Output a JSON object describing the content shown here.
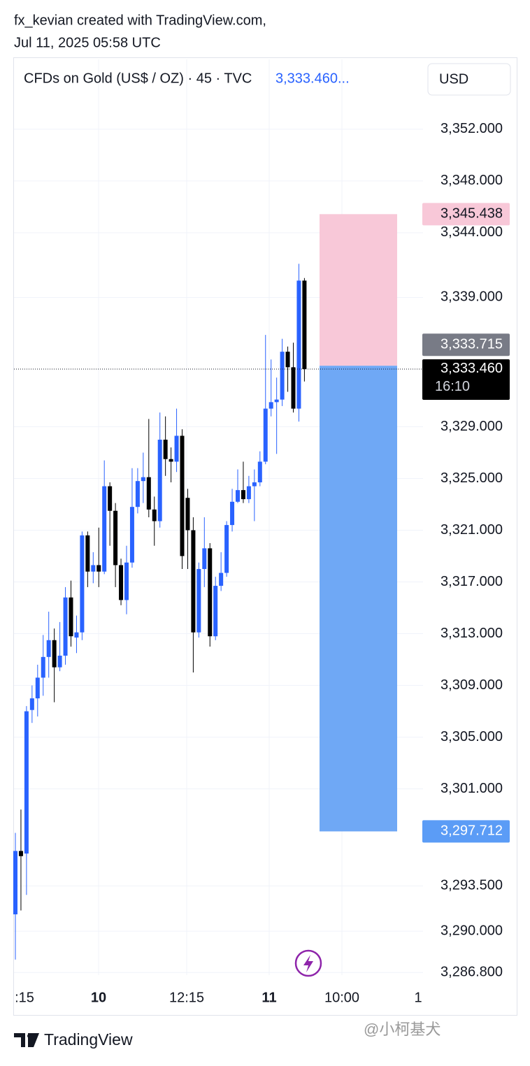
{
  "chart_data": {
    "type": "candlestick",
    "attribution": "fx_kevian created with TradingView.com,",
    "timestamp": "Jul 11, 2025 05:58 UTC",
    "title": "CFDs on Gold (US$ / OZ) · 45 · TVC",
    "header_price": "3,333.460...",
    "currency": "USD",
    "x_labels": [
      ":15",
      "10",
      "12:15",
      "11",
      "10:00",
      "1"
    ],
    "up_color": "#2962ff",
    "down_color": "#000000",
    "open": [
      3291.3,
      3296.2,
      3296.0,
      3307.1,
      3308.0,
      3309.6,
      3311.2,
      3312.5,
      3310.4,
      3311.3,
      3315.8,
      3312.7,
      3313.1,
      3320.6,
      3317.8,
      3318.3,
      3317.8,
      3324.4,
      3322.5,
      3318.3,
      3315.6,
      3318.5,
      3322.8,
      3324.8,
      3325.1,
      3322.6,
      3321.7,
      3328.0,
      3326.5,
      3326.3,
      3328.3,
      3323.5,
      3321.0,
      3313.1,
      3318.0,
      3319.6,
      3312.8,
      3316.7,
      3317.7,
      3321.4,
      3323.2,
      3324.1,
      3323.4,
      3324.4,
      3324.7,
      3326.3,
      3330.4,
      3330.9,
      3331.1,
      3334.8,
      3333.6,
      3330.4,
      3340.3
    ],
    "high": [
      3297.6,
      3299.4,
      3307.4,
      3309.0,
      3310.6,
      3312.9,
      3314.7,
      3313.4,
      3313.9,
      3316.6,
      3317.1,
      3314.4,
      3320.9,
      3320.9,
      3319.3,
      3321.2,
      3326.4,
      3324.7,
      3323.1,
      3318.8,
      3319.8,
      3325.8,
      3325.8,
      3327.0,
      3329.6,
      3323.6,
      3330.1,
      3329.8,
      3327.4,
      3330.4,
      3328.8,
      3324.2,
      3322.0,
      3318.5,
      3322.0,
      3320.0,
      3317.4,
      3319.3,
      3321.7,
      3324.2,
      3325.7,
      3326.3,
      3325.2,
      3325.7,
      3327.1,
      3336.1,
      3334.2,
      3332.8,
      3335.8,
      3335.2,
      3335.5,
      3341.6,
      3340.5
    ],
    "low": [
      3287.8,
      3291.6,
      3292.8,
      3306.1,
      3306.6,
      3308.2,
      3309.6,
      3307.7,
      3310.1,
      3310.6,
      3312.0,
      3311.5,
      3312.5,
      3316.6,
      3316.9,
      3316.6,
      3317.6,
      3319.8,
      3316.6,
      3315.2,
      3314.5,
      3318.1,
      3322.3,
      3323.1,
      3322.0,
      3319.8,
      3321.2,
      3325.2,
      3324.7,
      3325.5,
      3318.0,
      3318.0,
      3310.0,
      3312.7,
      3316.6,
      3312.0,
      3312.5,
      3316.3,
      3317.4,
      3320.9,
      3323.1,
      3323.1,
      3323.1,
      3321.7,
      3324.4,
      3326.1,
      3329.8,
      3326.9,
      3330.6,
      3331.7,
      3330.1,
      3329.4,
      3332.5
    ],
    "close": [
      3296.2,
      3295.8,
      3307.0,
      3308.0,
      3309.6,
      3311.2,
      3312.5,
      3310.4,
      3311.3,
      3315.8,
      3312.8,
      3313.1,
      3320.6,
      3317.8,
      3318.3,
      3317.8,
      3324.4,
      3322.5,
      3318.3,
      3315.6,
      3318.5,
      3322.8,
      3324.8,
      3325.1,
      3322.6,
      3321.7,
      3328.0,
      3326.5,
      3326.3,
      3328.3,
      3319.0,
      3321.0,
      3313.1,
      3318.0,
      3319.6,
      3312.8,
      3316.7,
      3317.7,
      3321.4,
      3323.2,
      3324.1,
      3323.4,
      3324.4,
      3324.7,
      3326.3,
      3330.4,
      3330.9,
      3331.1,
      3334.8,
      3333.6,
      3330.4,
      3340.3,
      3333.46
    ],
    "ylim": [
      3286.6,
      3357.4
    ],
    "yticks": [
      {
        "value": 3352,
        "label": "3,352.000"
      },
      {
        "value": 3348,
        "label": "3,348.000"
      },
      {
        "value": 3344,
        "label": "3,344.000"
      },
      {
        "value": 3339,
        "label": "3,339.000"
      },
      {
        "value": 3329,
        "label": "3,329.000"
      },
      {
        "value": 3325,
        "label": "3,325.000"
      },
      {
        "value": 3321,
        "label": "3,321.000"
      },
      {
        "value": 3317,
        "label": "3,317.000"
      },
      {
        "value": 3313,
        "label": "3,313.000"
      },
      {
        "value": 3309,
        "label": "3,309.000"
      },
      {
        "value": 3305,
        "label": "3,305.000"
      },
      {
        "value": 3301,
        "label": "3,301.000"
      },
      {
        "value": 3293.5,
        "label": "3,293.500"
      },
      {
        "value": 3290,
        "label": "3,290.000"
      },
      {
        "value": 3286.8,
        "label": "3,286.800"
      }
    ],
    "position": {
      "stop": {
        "value": 3345.438,
        "label": "3,345.438"
      },
      "entry": {
        "value": 3333.715,
        "label": "3,333.715"
      },
      "target": {
        "value": 3297.712,
        "label": "3,297.712"
      },
      "stop_color": "#f8c8d8",
      "target_color": "#6fa8f5"
    },
    "last_price": {
      "value": 3333.46,
      "label": "3,333.460"
    },
    "countdown": "16:10",
    "grid": true,
    "footer_brand": "TradingView",
    "watermark": "@小柯基犬"
  }
}
